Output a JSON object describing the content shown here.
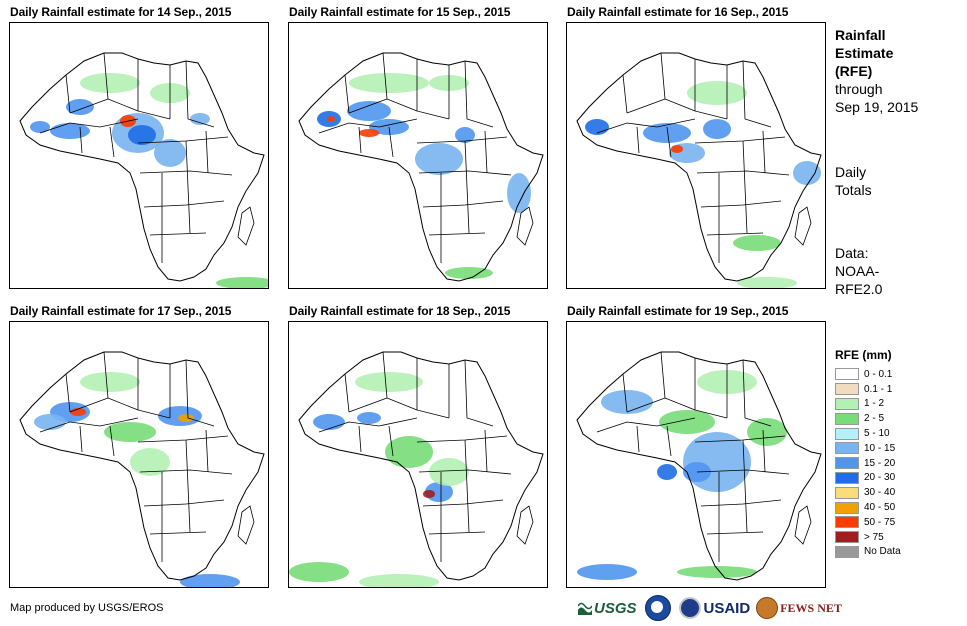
{
  "panels": [
    {
      "title": "Daily Rainfall estimate for 14 Sep., 2015",
      "pattern": 0
    },
    {
      "title": "Daily Rainfall estimate for 15 Sep., 2015",
      "pattern": 1
    },
    {
      "title": "Daily Rainfall estimate for 16 Sep., 2015",
      "pattern": 2
    },
    {
      "title": "Daily Rainfall estimate for 17 Sep., 2015",
      "pattern": 3
    },
    {
      "title": "Daily Rainfall estimate for 18 Sep., 2015",
      "pattern": 4
    },
    {
      "title": "Daily Rainfall estimate for 19 Sep., 2015",
      "pattern": 5
    }
  ],
  "side": {
    "title_line1": "Rainfall",
    "title_line2": "Estimate",
    "title_line3": "(RFE)",
    "through_label": "through",
    "through_date": "Sep 19, 2015",
    "totals_line1": "Daily",
    "totals_line2": "Totals",
    "data_line1": "Data:",
    "data_line2": "NOAA-",
    "data_line3": "RFE2.0"
  },
  "legend": {
    "title": "RFE (mm)",
    "items": [
      {
        "label": "0 - 0.1",
        "color": "#ffffff"
      },
      {
        "label": "0.1 - 1",
        "color": "#f0dcbe"
      },
      {
        "label": "1 - 2",
        "color": "#b4f0b4"
      },
      {
        "label": "2 - 5",
        "color": "#78dc78"
      },
      {
        "label": "5 - 10",
        "color": "#b4f0fa"
      },
      {
        "label": "10 - 15",
        "color": "#78b4f0"
      },
      {
        "label": "15 - 20",
        "color": "#5096f0"
      },
      {
        "label": "20 - 30",
        "color": "#1e6ee6"
      },
      {
        "label": "30 - 40",
        "color": "#fadc78"
      },
      {
        "label": "40 - 50",
        "color": "#f0a000"
      },
      {
        "label": "50 - 75",
        "color": "#fa3c00"
      },
      {
        "label": "> 75",
        "color": "#a01e1e"
      },
      {
        "label": "No Data",
        "color": "#999999"
      }
    ]
  },
  "footer": {
    "credit": "Map produced by USGS/EROS"
  },
  "logos": {
    "usgs": "USGS",
    "usaid": "USAID",
    "fews": "FEWS NET"
  }
}
